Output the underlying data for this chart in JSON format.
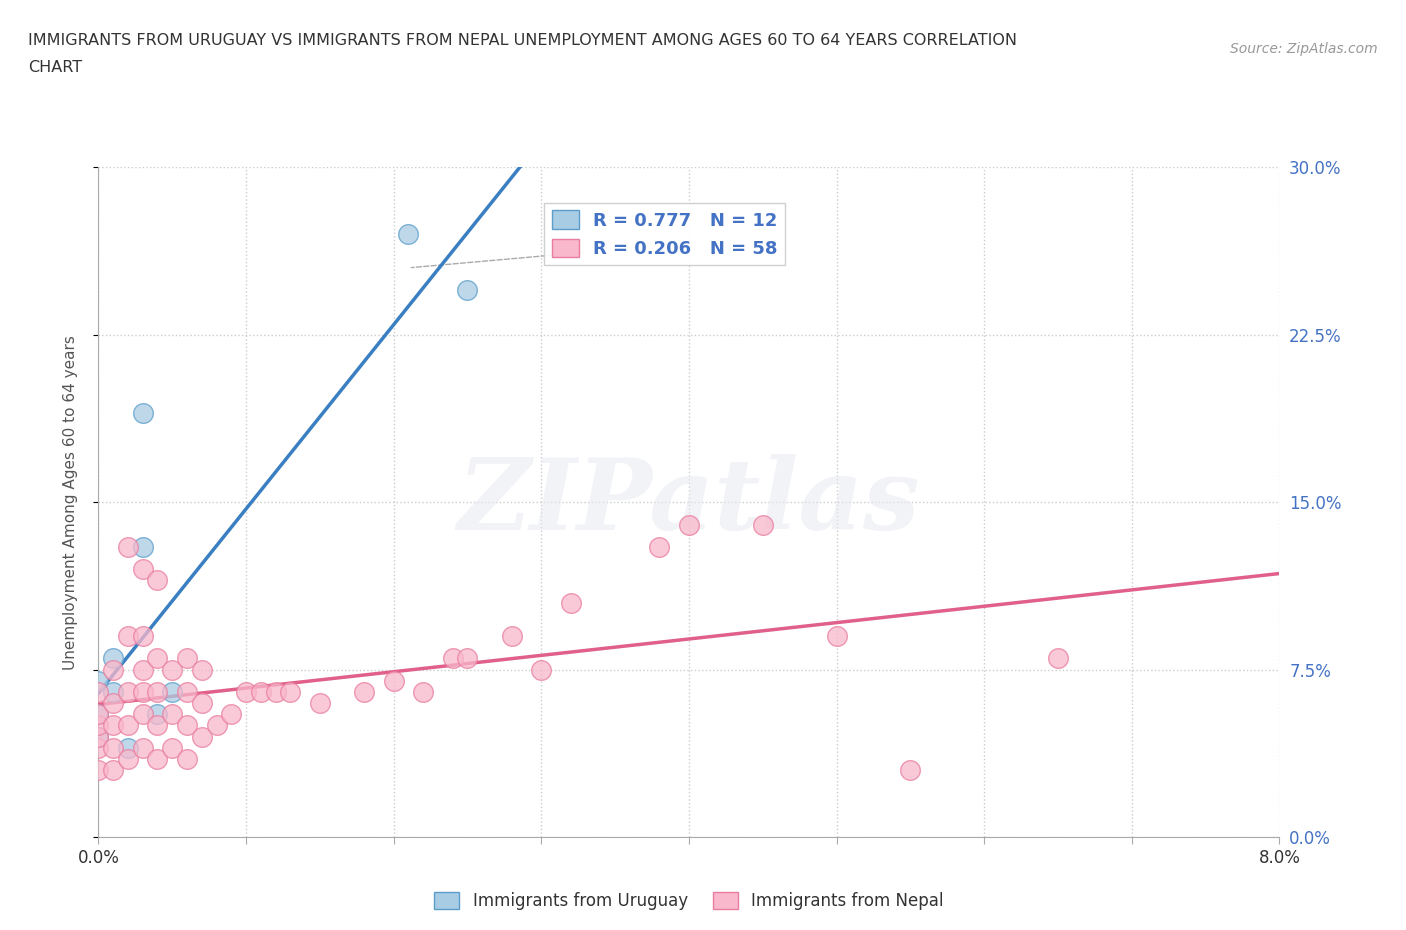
{
  "title_line1": "IMMIGRANTS FROM URUGUAY VS IMMIGRANTS FROM NEPAL UNEMPLOYMENT AMONG AGES 60 TO 64 YEARS CORRELATION",
  "title_line2": "CHART",
  "source_text": "Source: ZipAtlas.com",
  "ylabel_text": "Unemployment Among Ages 60 to 64 years",
  "xlim": [
    0.0,
    0.08
  ],
  "ylim": [
    0.0,
    0.3
  ],
  "xticks": [
    0.0,
    0.01,
    0.02,
    0.03,
    0.04,
    0.05,
    0.06,
    0.07,
    0.08
  ],
  "xticklabels_outer": [
    "0.0%",
    "",
    "",
    "",
    "",
    "",
    "",
    "",
    "8.0%"
  ],
  "yticks": [
    0.0,
    0.075,
    0.15,
    0.225,
    0.3
  ],
  "yticklabels": [
    "0.0%",
    "7.5%",
    "15.0%",
    "22.5%",
    "30.0%"
  ],
  "uruguay_color": "#a8cce4",
  "nepal_color": "#f9b8cb",
  "uruguay_edge": "#5b9ec9",
  "nepal_edge": "#e87da0",
  "trend_uruguay_color": "#3a7fc1",
  "trend_nepal_color": "#e0608a",
  "R_uruguay": 0.777,
  "N_uruguay": 12,
  "R_nepal": 0.206,
  "N_nepal": 58,
  "watermark": "ZIPatlas",
  "background_color": "#ffffff",
  "grid_color": "#cccccc",
  "uruguay_scatter_x": [
    0.0,
    0.0,
    0.0,
    0.001,
    0.001,
    0.002,
    0.003,
    0.003,
    0.004,
    0.005,
    0.021,
    0.025
  ],
  "uruguay_scatter_y": [
    0.045,
    0.055,
    0.07,
    0.065,
    0.08,
    0.04,
    0.13,
    0.19,
    0.055,
    0.065,
    0.27,
    0.245
  ],
  "nepal_scatter_x": [
    0.0,
    0.0,
    0.0,
    0.0,
    0.0,
    0.0,
    0.001,
    0.001,
    0.001,
    0.001,
    0.001,
    0.002,
    0.002,
    0.002,
    0.002,
    0.002,
    0.003,
    0.003,
    0.003,
    0.003,
    0.003,
    0.003,
    0.004,
    0.004,
    0.004,
    0.004,
    0.004,
    0.005,
    0.005,
    0.005,
    0.006,
    0.006,
    0.006,
    0.006,
    0.007,
    0.007,
    0.007,
    0.008,
    0.009,
    0.01,
    0.011,
    0.012,
    0.013,
    0.015,
    0.018,
    0.02,
    0.022,
    0.024,
    0.025,
    0.028,
    0.03,
    0.032,
    0.038,
    0.04,
    0.045,
    0.05,
    0.055,
    0.065
  ],
  "nepal_scatter_y": [
    0.03,
    0.04,
    0.045,
    0.05,
    0.055,
    0.065,
    0.03,
    0.04,
    0.05,
    0.06,
    0.075,
    0.035,
    0.05,
    0.065,
    0.09,
    0.13,
    0.04,
    0.055,
    0.065,
    0.075,
    0.09,
    0.12,
    0.035,
    0.05,
    0.065,
    0.08,
    0.115,
    0.04,
    0.055,
    0.075,
    0.035,
    0.05,
    0.065,
    0.08,
    0.045,
    0.06,
    0.075,
    0.05,
    0.055,
    0.065,
    0.065,
    0.065,
    0.065,
    0.06,
    0.065,
    0.07,
    0.065,
    0.08,
    0.08,
    0.09,
    0.075,
    0.105,
    0.13,
    0.14,
    0.14,
    0.09,
    0.03,
    0.08
  ],
  "legend_label_uruguay": "Immigrants from Uruguay",
  "legend_label_nepal": "Immigrants from Nepal"
}
